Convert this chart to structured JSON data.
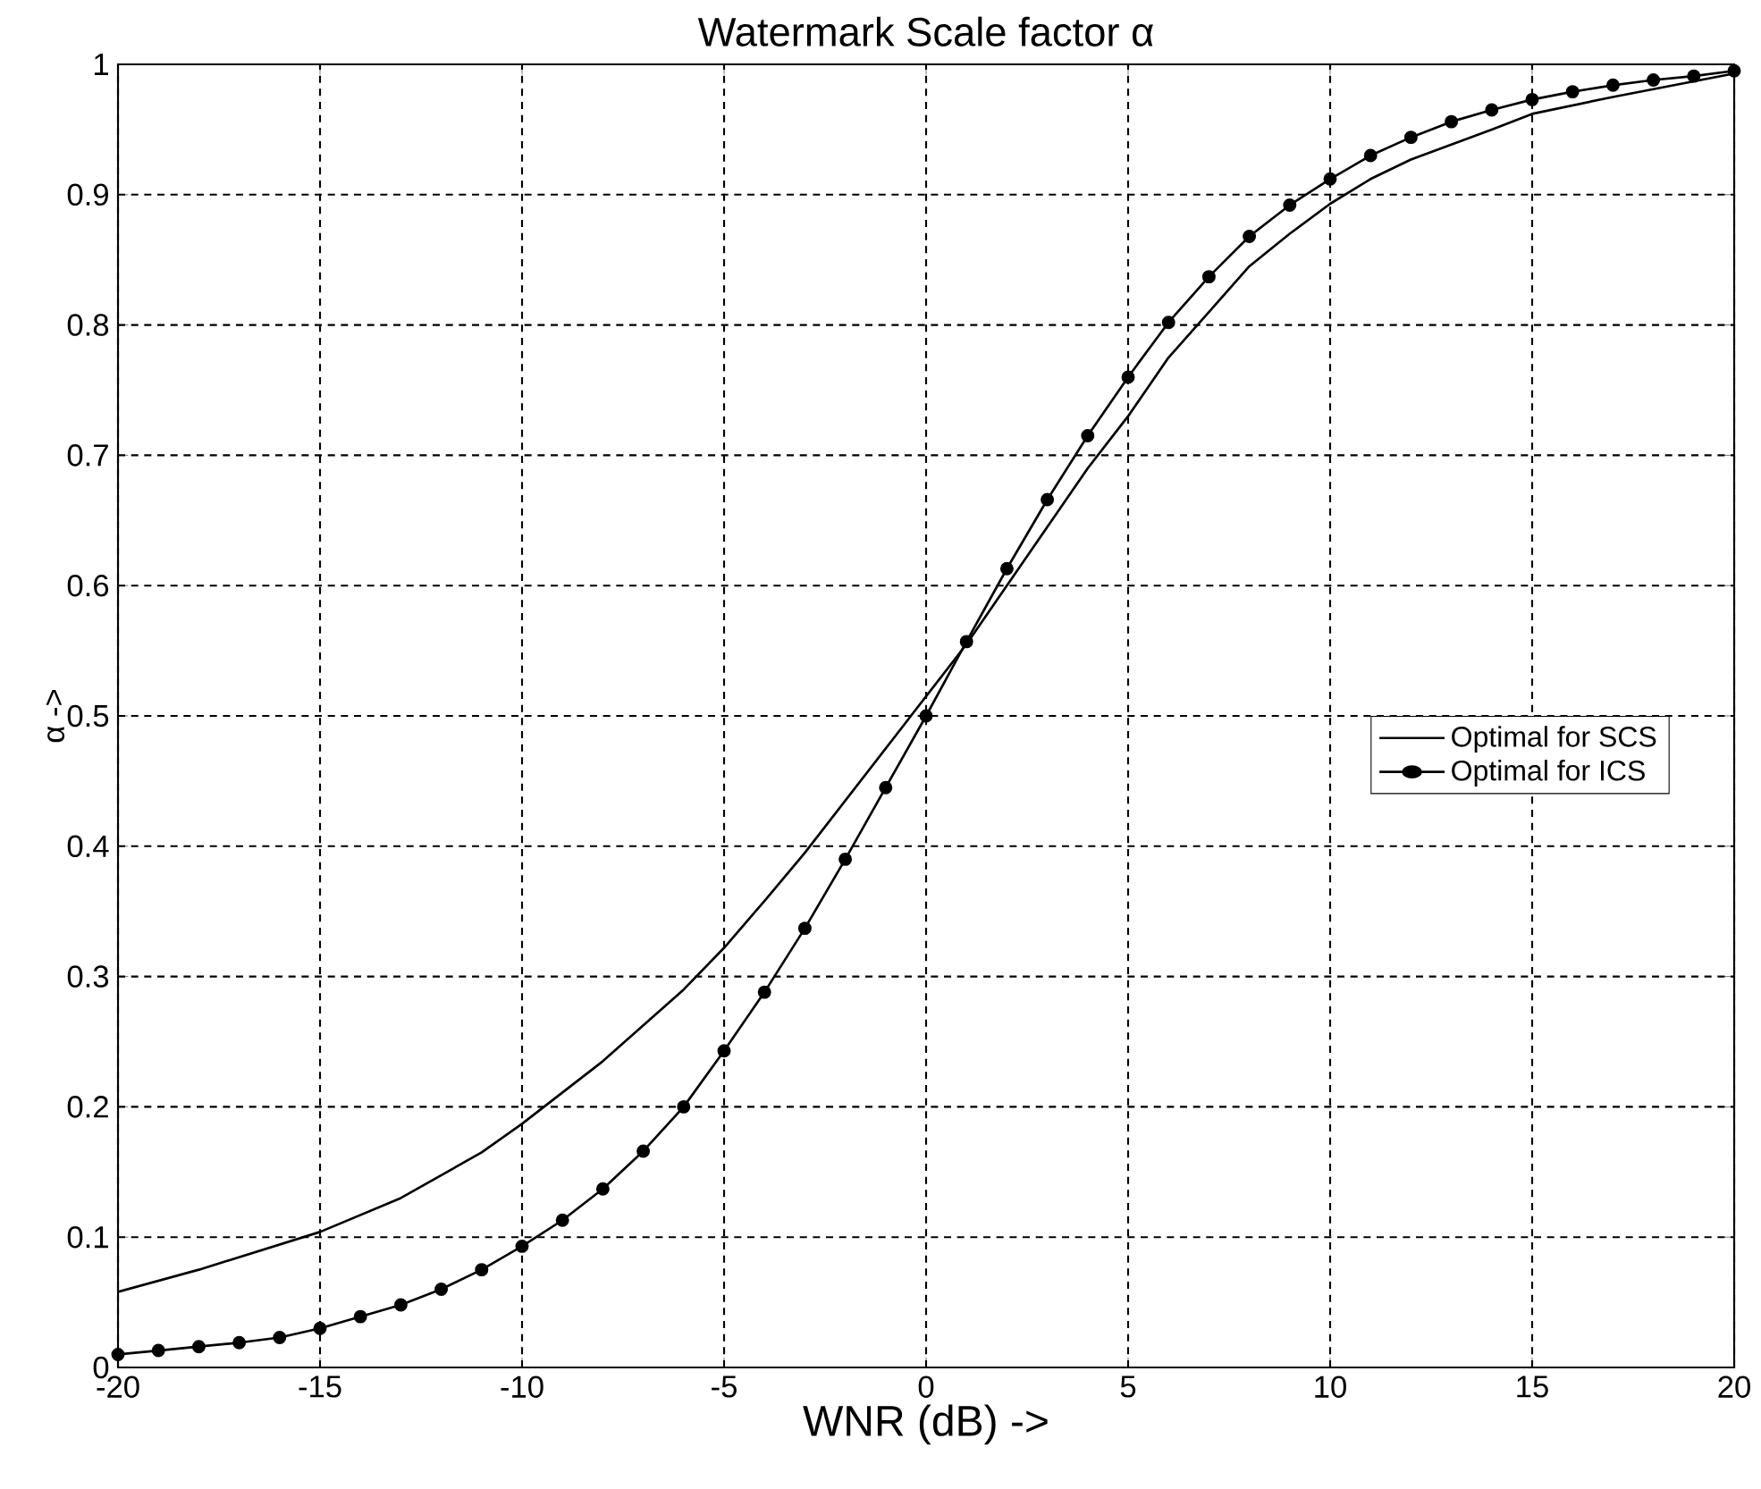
{
  "chart_data": {
    "type": "line",
    "title": "Watermark Scale factor α",
    "xlabel": "WNR (dB) ->",
    "ylabel": "α ->",
    "xlim": [
      -20,
      20
    ],
    "xticks": [
      -20,
      -15,
      -10,
      -5,
      0,
      5,
      10,
      15,
      20
    ],
    "ylim": [
      0,
      1
    ],
    "yticks": [
      0,
      0.1,
      0.2,
      0.3,
      0.4,
      0.5,
      0.6,
      0.7,
      0.8,
      0.9,
      1
    ],
    "grid": true,
    "legend": "right",
    "series": [
      {
        "name": "Optimal for SCS",
        "color": "#000000",
        "marker": "none",
        "x": [
          -20,
          -18,
          -15,
          -13,
          -11,
          -10,
          -8,
          -6,
          -5,
          -4,
          -3,
          -2,
          -1,
          0,
          1,
          2,
          3,
          4,
          5,
          6,
          7,
          8,
          9,
          10,
          11,
          12,
          14,
          15,
          17,
          20
        ],
        "values": [
          0.058,
          0.075,
          0.104,
          0.13,
          0.165,
          0.187,
          0.235,
          0.29,
          0.322,
          0.358,
          0.395,
          0.435,
          0.475,
          0.515,
          0.555,
          0.6,
          0.645,
          0.69,
          0.73,
          0.775,
          0.81,
          0.845,
          0.87,
          0.893,
          0.912,
          0.927,
          0.95,
          0.962,
          0.975,
          0.993
        ]
      },
      {
        "name": "Optimal for ICS",
        "color": "#000000",
        "marker": "circle",
        "x": [
          -20,
          -19,
          -18,
          -17,
          -16,
          -15,
          -14,
          -13,
          -12,
          -11,
          -10,
          -9,
          -8,
          -7,
          -6,
          -5,
          -4,
          -3,
          -2,
          -1,
          0,
          1,
          2,
          3,
          4,
          5,
          6,
          7,
          8,
          9,
          10,
          11,
          12,
          13,
          14,
          15,
          16,
          17,
          18,
          19,
          20
        ],
        "values": [
          0.01,
          0.013,
          0.016,
          0.019,
          0.023,
          0.03,
          0.039,
          0.048,
          0.06,
          0.075,
          0.093,
          0.113,
          0.137,
          0.166,
          0.2,
          0.243,
          0.288,
          0.337,
          0.39,
          0.445,
          0.5,
          0.557,
          0.613,
          0.666,
          0.715,
          0.76,
          0.802,
          0.837,
          0.868,
          0.892,
          0.912,
          0.93,
          0.944,
          0.956,
          0.965,
          0.973,
          0.979,
          0.984,
          0.988,
          0.991,
          0.995
        ]
      }
    ]
  }
}
